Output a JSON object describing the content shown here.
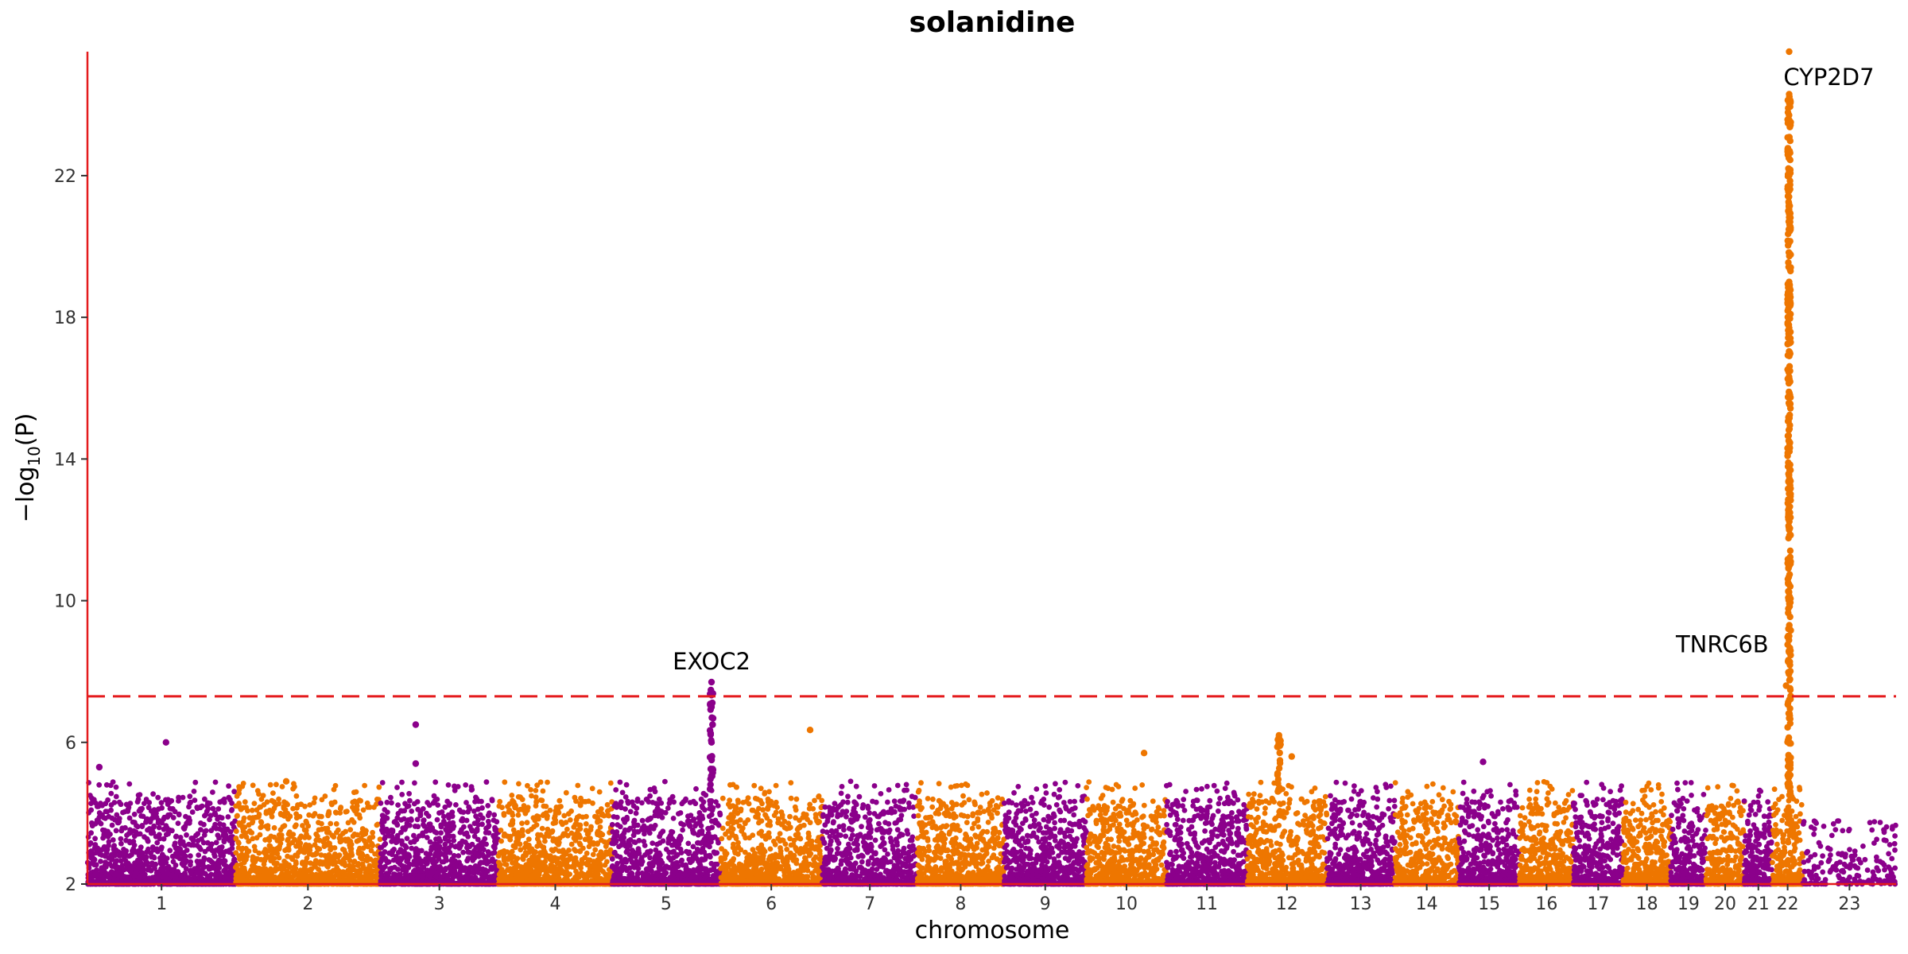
{
  "chart_data": {
    "type": "scatter",
    "subtype": "manhattan",
    "title": "solanidine",
    "xlabel": "chromosome",
    "ylabel": "−log10(P)",
    "ylim": [
      2,
      25.5
    ],
    "yticks": [
      2,
      6,
      10,
      14,
      18,
      22
    ],
    "threshold": 7.3,
    "threshold_color": "#E41A1C",
    "axis_color": "#E41A1C",
    "grid": false,
    "colors": [
      "#8B008B",
      "#EE7600"
    ],
    "chromosomes": [
      "1",
      "2",
      "3",
      "4",
      "5",
      "6",
      "7",
      "8",
      "9",
      "10",
      "11",
      "12",
      "13",
      "14",
      "15",
      "16",
      "17",
      "18",
      "19",
      "20",
      "21",
      "22",
      "23"
    ],
    "chrom_sizes": [
      248,
      242,
      198,
      190,
      181,
      171,
      159,
      145,
      138,
      134,
      135,
      133,
      114,
      107,
      102,
      90,
      83,
      80,
      59,
      64,
      47,
      51,
      156
    ],
    "chrom_colors": [
      "#8B008B",
      "#EE7600",
      "#8B008B",
      "#EE7600",
      "#8B008B",
      "#EE7600",
      "#8B008B",
      "#EE7600",
      "#8B008B",
      "#EE7600",
      "#8B008B",
      "#EE7600",
      "#8B008B",
      "#EE7600",
      "#8B008B",
      "#EE7600",
      "#8B008B",
      "#EE7600",
      "#8B008B",
      "#EE7600",
      "#8B008B",
      "#EE7600",
      "#8B008B"
    ],
    "peaks": [
      {
        "chrom": "1",
        "pos": 0.53,
        "y": 6.0
      },
      {
        "chrom": "1",
        "pos": 0.08,
        "y": 5.3
      },
      {
        "chrom": "2",
        "pos": 0.35,
        "y": 4.9
      },
      {
        "chrom": "3",
        "pos": 0.3,
        "y": 6.5
      },
      {
        "chrom": "3",
        "pos": 0.3,
        "y": 5.4
      },
      {
        "chrom": "5",
        "pos": 0.92,
        "y": 7.7
      },
      {
        "chrom": "5",
        "pos": 0.92,
        "y": 7.0
      },
      {
        "chrom": "5",
        "pos": 0.93,
        "y": 6.5
      },
      {
        "chrom": "5",
        "pos": 0.92,
        "y": 6.0
      },
      {
        "chrom": "6",
        "pos": 0.88,
        "y": 6.35
      },
      {
        "chrom": "10",
        "pos": 0.72,
        "y": 5.7
      },
      {
        "chrom": "12",
        "pos": 0.4,
        "y": 6.2
      },
      {
        "chrom": "12",
        "pos": 0.41,
        "y": 5.9
      },
      {
        "chrom": "12",
        "pos": 0.56,
        "y": 5.6
      },
      {
        "chrom": "15",
        "pos": 0.4,
        "y": 5.45
      },
      {
        "chrom": "22",
        "pos": 0.55,
        "y": 25.5
      },
      {
        "chrom": "22",
        "pos": 0.55,
        "y": 24.3
      },
      {
        "chrom": "22",
        "pos": 0.55,
        "y": 22.0
      },
      {
        "chrom": "22",
        "pos": 0.55,
        "y": 20.5
      },
      {
        "chrom": "22",
        "pos": 0.55,
        "y": 19.0
      },
      {
        "chrom": "22",
        "pos": 0.55,
        "y": 17.7
      },
      {
        "chrom": "22",
        "pos": 0.55,
        "y": 15.8
      },
      {
        "chrom": "22",
        "pos": 0.55,
        "y": 12.0
      },
      {
        "chrom": "22",
        "pos": 0.55,
        "y": 9.0
      },
      {
        "chrom": "22",
        "pos": 0.45,
        "y": 7.6
      }
    ],
    "annotations": [
      {
        "label": "EXOC2",
        "chrom": "5",
        "pos": 0.92,
        "y": 7.7
      },
      {
        "label": "CYP2D7",
        "chrom": "22",
        "pos": 0.55,
        "y": 25.5
      },
      {
        "label": "TNRC6B",
        "chrom": "22",
        "pos": 0.45,
        "y": 7.6
      }
    ]
  }
}
